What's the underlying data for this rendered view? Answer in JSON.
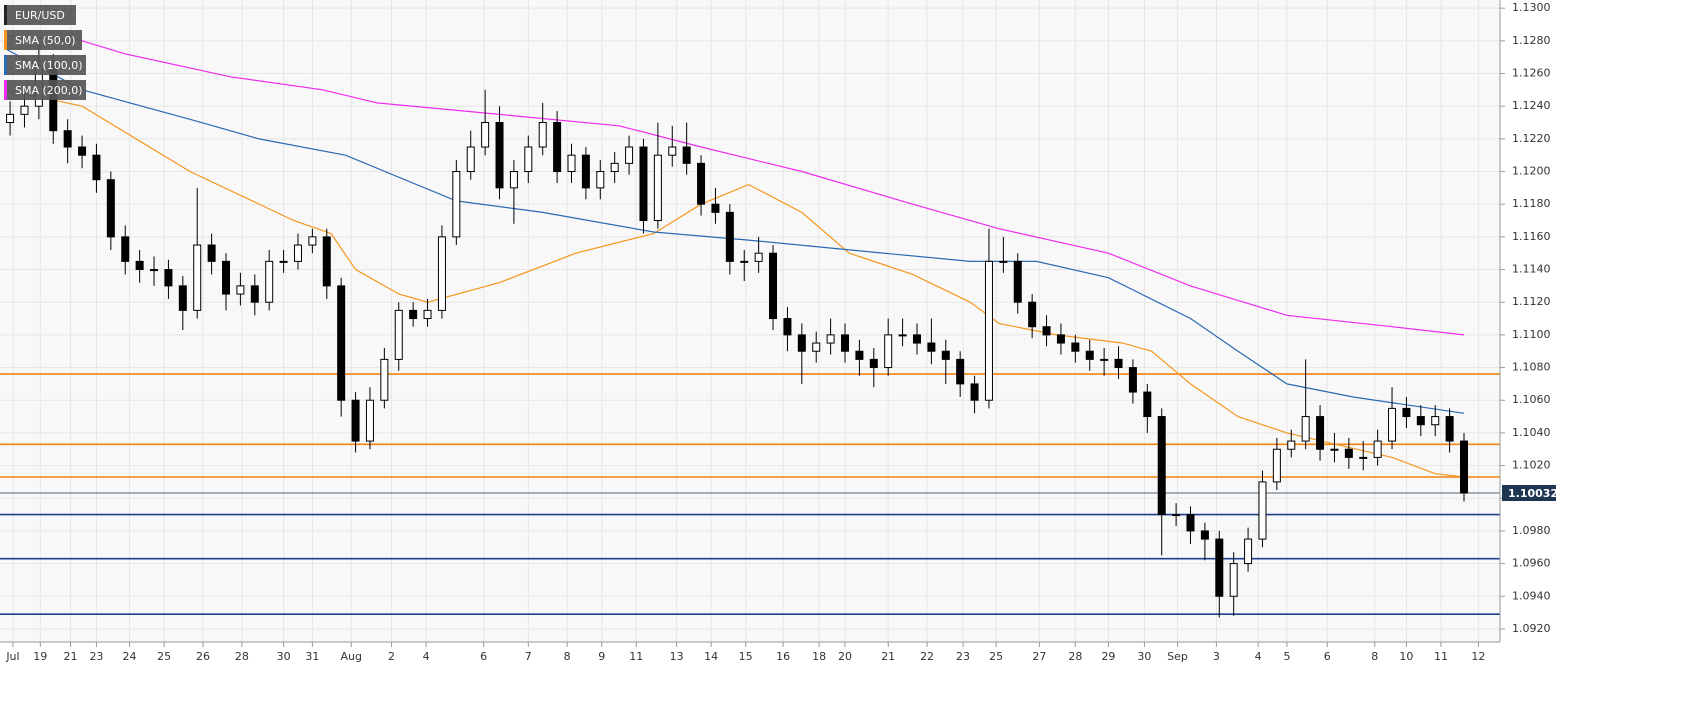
{
  "chart_data": {
    "type": "candlestick",
    "symbol": "EUR/USD",
    "symbol_color": "#222222",
    "up_color": "#ffffff",
    "down_color": "#000000",
    "grid": true,
    "ylim": [
      1.0912,
      1.1305
    ],
    "yticks": [
      {
        "value": 1.13,
        "label": "1.1300"
      },
      {
        "value": 1.128,
        "label": "1.1280"
      },
      {
        "value": 1.126,
        "label": "1.1260"
      },
      {
        "value": 1.124,
        "label": "1.1240"
      },
      {
        "value": 1.122,
        "label": "1.1220"
      },
      {
        "value": 1.12,
        "label": "1.1200"
      },
      {
        "value": 1.118,
        "label": "1.1180"
      },
      {
        "value": 1.116,
        "label": "1.1160"
      },
      {
        "value": 1.114,
        "label": "1.1140"
      },
      {
        "value": 1.112,
        "label": "1.1120"
      },
      {
        "value": 1.11,
        "label": "1.1100"
      },
      {
        "value": 1.108,
        "label": "1.1080"
      },
      {
        "value": 1.106,
        "label": "1.1060"
      },
      {
        "value": 1.104,
        "label": "1.1040"
      },
      {
        "value": 1.102,
        "label": "1.1020"
      },
      {
        "value": 1.1,
        "label": "1.1000"
      },
      {
        "value": 1.098,
        "label": "1.0980"
      },
      {
        "value": 1.096,
        "label": "1.0960"
      },
      {
        "value": 1.094,
        "label": "1.0940"
      },
      {
        "value": 1.092,
        "label": "1.0920"
      }
    ],
    "xlim": [
      -0.7,
      103.5
    ],
    "xticks": [
      {
        "value": 0.2,
        "label": "Jul"
      },
      {
        "value": 2.1,
        "label": "19"
      },
      {
        "value": 4.2,
        "label": "21"
      },
      {
        "value": 6,
        "label": "23"
      },
      {
        "value": 8.3,
        "label": "24"
      },
      {
        "value": 10.7,
        "label": "25"
      },
      {
        "value": 13.4,
        "label": "26"
      },
      {
        "value": 16.1,
        "label": "28"
      },
      {
        "value": 19,
        "label": "30"
      },
      {
        "value": 21,
        "label": "31"
      },
      {
        "value": 23.7,
        "label": "Aug"
      },
      {
        "value": 26.5,
        "label": "2"
      },
      {
        "value": 28.9,
        "label": "4"
      },
      {
        "value": 32.9,
        "label": "6"
      },
      {
        "value": 36,
        "label": "7"
      },
      {
        "value": 38.7,
        "label": "8"
      },
      {
        "value": 41.1,
        "label": "9"
      },
      {
        "value": 43.5,
        "label": "11"
      },
      {
        "value": 46.3,
        "label": "13"
      },
      {
        "value": 48.7,
        "label": "14"
      },
      {
        "value": 51.1,
        "label": "15"
      },
      {
        "value": 53.7,
        "label": "16"
      },
      {
        "value": 56.2,
        "label": "18"
      },
      {
        "value": 58,
        "label": "20"
      },
      {
        "value": 61,
        "label": "21"
      },
      {
        "value": 63.7,
        "label": "22"
      },
      {
        "value": 66.2,
        "label": "23"
      },
      {
        "value": 68.5,
        "label": "25"
      },
      {
        "value": 71.5,
        "label": "27"
      },
      {
        "value": 74,
        "label": "28"
      },
      {
        "value": 76.3,
        "label": "29"
      },
      {
        "value": 78.8,
        "label": "30"
      },
      {
        "value": 81.1,
        "label": "Sep"
      },
      {
        "value": 83.8,
        "label": "3"
      },
      {
        "value": 86.7,
        "label": "4"
      },
      {
        "value": 88.7,
        "label": "5"
      },
      {
        "value": 91.5,
        "label": "6"
      },
      {
        "value": 94.8,
        "label": "8"
      },
      {
        "value": 97,
        "label": "10"
      },
      {
        "value": 99.4,
        "label": "11"
      },
      {
        "value": 102,
        "label": "12"
      }
    ],
    "ohlc": [
      [
        1.123,
        1.1243,
        1.1222,
        1.1235
      ],
      [
        1.1235,
        1.1248,
        1.1227,
        1.124
      ],
      [
        1.124,
        1.1278,
        1.1232,
        1.1265
      ],
      [
        1.1265,
        1.1272,
        1.1217,
        1.1225
      ],
      [
        1.1225,
        1.1232,
        1.1205,
        1.1215
      ],
      [
        1.1215,
        1.1222,
        1.1202,
        1.121
      ],
      [
        1.121,
        1.1217,
        1.1187,
        1.1195
      ],
      [
        1.1195,
        1.12,
        1.1152,
        1.116
      ],
      [
        1.116,
        1.1167,
        1.1137,
        1.1145
      ],
      [
        1.1145,
        1.1152,
        1.1132,
        1.114
      ],
      [
        1.114,
        1.1148,
        1.113,
        1.114
      ],
      [
        1.114,
        1.1146,
        1.1122,
        1.113
      ],
      [
        1.113,
        1.1136,
        1.1103,
        1.1115
      ],
      [
        1.1115,
        1.119,
        1.111,
        1.1155
      ],
      [
        1.1155,
        1.1162,
        1.1137,
        1.1145
      ],
      [
        1.1145,
        1.115,
        1.1115,
        1.1125
      ],
      [
        1.1125,
        1.1138,
        1.1118,
        1.113
      ],
      [
        1.113,
        1.1137,
        1.1112,
        1.112
      ],
      [
        1.112,
        1.1152,
        1.1115,
        1.1145
      ],
      [
        1.1145,
        1.1152,
        1.1138,
        1.1145
      ],
      [
        1.1145,
        1.1162,
        1.114,
        1.1155
      ],
      [
        1.1155,
        1.1165,
        1.115,
        1.116
      ],
      [
        1.116,
        1.1165,
        1.1122,
        1.113
      ],
      [
        1.113,
        1.1135,
        1.105,
        1.106
      ],
      [
        1.106,
        1.1065,
        1.1028,
        1.1035
      ],
      [
        1.1035,
        1.1068,
        1.103,
        1.106
      ],
      [
        1.106,
        1.1092,
        1.1055,
        1.1085
      ],
      [
        1.1085,
        1.112,
        1.1078,
        1.1115
      ],
      [
        1.1115,
        1.112,
        1.1105,
        1.111
      ],
      [
        1.111,
        1.1122,
        1.1105,
        1.1115
      ],
      [
        1.1115,
        1.1167,
        1.111,
        1.116
      ],
      [
        1.116,
        1.1207,
        1.1155,
        1.12
      ],
      [
        1.12,
        1.1225,
        1.1195,
        1.1215
      ],
      [
        1.1215,
        1.125,
        1.121,
        1.123
      ],
      [
        1.123,
        1.124,
        1.1183,
        1.119
      ],
      [
        1.119,
        1.1207,
        1.1168,
        1.12
      ],
      [
        1.12,
        1.1222,
        1.1193,
        1.1215
      ],
      [
        1.1215,
        1.1242,
        1.121,
        1.123
      ],
      [
        1.123,
        1.1237,
        1.1193,
        1.12
      ],
      [
        1.12,
        1.1217,
        1.1193,
        1.121
      ],
      [
        1.121,
        1.1215,
        1.1183,
        1.119
      ],
      [
        1.119,
        1.1207,
        1.1183,
        1.12
      ],
      [
        1.12,
        1.1212,
        1.1193,
        1.1205
      ],
      [
        1.1205,
        1.1222,
        1.1198,
        1.1215
      ],
      [
        1.1215,
        1.122,
        1.1162,
        1.117
      ],
      [
        1.117,
        1.123,
        1.1165,
        1.121
      ],
      [
        1.121,
        1.1228,
        1.1203,
        1.1215
      ],
      [
        1.1215,
        1.123,
        1.1198,
        1.1205
      ],
      [
        1.1205,
        1.121,
        1.1173,
        1.118
      ],
      [
        1.118,
        1.119,
        1.1168,
        1.1175
      ],
      [
        1.1175,
        1.118,
        1.1137,
        1.1145
      ],
      [
        1.1145,
        1.1152,
        1.1133,
        1.1145
      ],
      [
        1.1145,
        1.116,
        1.1138,
        1.115
      ],
      [
        1.115,
        1.1155,
        1.1103,
        1.111
      ],
      [
        1.111,
        1.1117,
        1.109,
        1.11
      ],
      [
        1.11,
        1.1107,
        1.107,
        1.109
      ],
      [
        1.109,
        1.1102,
        1.1083,
        1.1095
      ],
      [
        1.1095,
        1.111,
        1.1088,
        1.11
      ],
      [
        1.11,
        1.1107,
        1.1083,
        1.109
      ],
      [
        1.109,
        1.1097,
        1.1075,
        1.1085
      ],
      [
        1.1085,
        1.1092,
        1.1068,
        1.108
      ],
      [
        1.108,
        1.111,
        1.1075,
        1.11
      ],
      [
        1.11,
        1.111,
        1.1093,
        1.11
      ],
      [
        1.11,
        1.1107,
        1.1088,
        1.1095
      ],
      [
        1.1095,
        1.111,
        1.1082,
        1.109
      ],
      [
        1.109,
        1.1097,
        1.107,
        1.1085
      ],
      [
        1.1085,
        1.109,
        1.1062,
        1.107
      ],
      [
        1.107,
        1.1075,
        1.1052,
        1.106
      ],
      [
        1.106,
        1.1165,
        1.1055,
        1.1145
      ],
      [
        1.1145,
        1.116,
        1.1138,
        1.1145
      ],
      [
        1.1145,
        1.115,
        1.1113,
        1.112
      ],
      [
        1.112,
        1.1125,
        1.1098,
        1.1105
      ],
      [
        1.1105,
        1.1112,
        1.1093,
        1.11
      ],
      [
        1.11,
        1.1107,
        1.1088,
        1.1095
      ],
      [
        1.1095,
        1.11,
        1.1083,
        1.109
      ],
      [
        1.109,
        1.1097,
        1.1078,
        1.1085
      ],
      [
        1.1085,
        1.1092,
        1.1075,
        1.1085
      ],
      [
        1.1085,
        1.1093,
        1.1073,
        1.108
      ],
      [
        1.108,
        1.1085,
        1.1058,
        1.1065
      ],
      [
        1.1065,
        1.107,
        1.104,
        1.105
      ],
      [
        1.105,
        1.1055,
        1.0965,
        1.099
      ],
      [
        1.099,
        1.0997,
        1.0983,
        1.099
      ],
      [
        1.099,
        1.0995,
        1.0972,
        1.098
      ],
      [
        1.098,
        1.0985,
        1.0962,
        1.0975
      ],
      [
        1.0975,
        1.098,
        1.0927,
        1.094
      ],
      [
        1.094,
        1.0967,
        1.0928,
        1.096
      ],
      [
        1.096,
        1.0982,
        1.0955,
        1.0975
      ],
      [
        1.0975,
        1.1017,
        1.097,
        1.101
      ],
      [
        1.101,
        1.1037,
        1.1005,
        1.103
      ],
      [
        1.103,
        1.1042,
        1.1025,
        1.1035
      ],
      [
        1.1035,
        1.1085,
        1.103,
        1.105
      ],
      [
        1.105,
        1.1057,
        1.1023,
        1.103
      ],
      [
        1.103,
        1.104,
        1.1022,
        1.103
      ],
      [
        1.103,
        1.1037,
        1.1018,
        1.1025
      ],
      [
        1.1025,
        1.1035,
        1.1017,
        1.1025
      ],
      [
        1.1025,
        1.1042,
        1.102,
        1.1035
      ],
      [
        1.1035,
        1.1068,
        1.103,
        1.1055
      ],
      [
        1.1055,
        1.1062,
        1.1043,
        1.105
      ],
      [
        1.105,
        1.1057,
        1.1038,
        1.1045
      ],
      [
        1.1045,
        1.1057,
        1.1038,
        1.105
      ],
      [
        1.105,
        1.1055,
        1.1028,
        1.1035
      ],
      [
        1.1035,
        1.104,
        1.0998,
        1.10032
      ]
    ],
    "series": [
      {
        "name": "SMA (50,0)",
        "color": "#f5961e",
        "x": [
          -0.3,
          5,
          12.5,
          19.7,
          22.3,
          24,
          27,
          29,
          34,
          39.3,
          44.7,
          48,
          51.3,
          55,
          58.3,
          62.7,
          66.7,
          68.7,
          72.7,
          77.3,
          79.3,
          82,
          85.3,
          88.7,
          96,
          99,
          101
        ],
        "values": [
          1.125,
          1.124,
          1.12,
          1.117,
          1.1162,
          1.114,
          1.1125,
          1.112,
          1.1132,
          1.115,
          1.1162,
          1.118,
          1.1192,
          1.1175,
          1.115,
          1.1137,
          1.112,
          1.1107,
          1.11,
          1.1095,
          1.109,
          1.107,
          1.105,
          1.104,
          1.1025,
          1.1015,
          1.1013
        ]
      },
      {
        "name": "SMA (100,0)",
        "color": "#2a6ab4",
        "x": [
          -0.3,
          5,
          12.5,
          17.3,
          23.3,
          31,
          37,
          44.7,
          51.3,
          58.3,
          66.7,
          71.3,
          76.3,
          82,
          85.3,
          88.7,
          93.3,
          101
        ],
        "values": [
          1.1275,
          1.125,
          1.1232,
          1.122,
          1.121,
          1.1182,
          1.1175,
          1.1163,
          1.1158,
          1.1152,
          1.1145,
          1.1145,
          1.1135,
          1.111,
          1.109,
          1.107,
          1.1062,
          1.1052
        ]
      },
      {
        "name": "SMA (200,0)",
        "color": "#ee2cee",
        "x": [
          -0.3,
          5,
          8,
          15.3,
          21.7,
          25.5,
          34,
          42.3,
          48,
          55,
          62.7,
          68.7,
          76.3,
          82,
          88.7,
          96,
          101
        ],
        "values": [
          1.1283,
          1.128,
          1.1272,
          1.1258,
          1.125,
          1.1242,
          1.1235,
          1.1228,
          1.1215,
          1.12,
          1.118,
          1.1165,
          1.115,
          1.113,
          1.1112,
          1.1105,
          1.11
        ]
      }
    ],
    "levels": [
      {
        "value": 1.1076,
        "color": "#f5820f"
      },
      {
        "value": 1.1033,
        "color": "#f5820f"
      },
      {
        "value": 1.1013,
        "color": "#f5820f"
      },
      {
        "value": 1.099,
        "color": "#1f3f8c"
      },
      {
        "value": 1.0963,
        "color": "#1f3f8c"
      },
      {
        "value": 1.0929,
        "color": "#1f3f8c"
      }
    ],
    "last_price": 1.10032,
    "last_price_color": "#1e3553"
  }
}
